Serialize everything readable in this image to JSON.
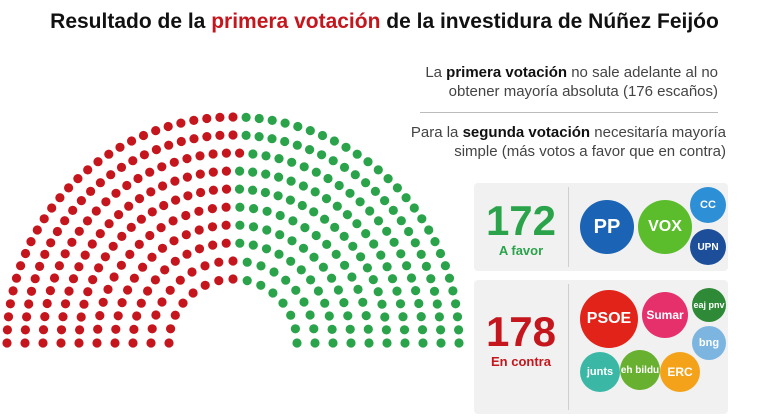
{
  "title": {
    "before": "Resultado de la ",
    "highlight": "primera votación",
    "after": " de la investidura de Núñez Feijóo"
  },
  "notes": {
    "first": {
      "a": "La ",
      "b": "primera votación",
      "c": " no sale adelante al no obtener mayoría absoluta (176 escaños)"
    },
    "second": {
      "a": "Para la ",
      "b": "segunda votación",
      "c": " necesitaría mayoría simple (más votos a favor que en contra)"
    }
  },
  "favor": {
    "count": "172",
    "label": "A favor",
    "parties": [
      "PP",
      "VOX",
      "CC",
      "UPN"
    ]
  },
  "contra": {
    "count": "178",
    "label": "En contra",
    "parties": [
      "PSOE",
      "Sumar",
      "eaj pnv",
      "bng",
      "junts",
      "eh bildu",
      "ERC"
    ]
  },
  "colors": {
    "favor": "#2aa34a",
    "contra": "#c4161c",
    "grey": "#c2c2c2",
    "accent": "#c4161c",
    "pp": "#1b63b5",
    "vox": "#5bbd2b",
    "cc": "#2d8fd5",
    "upn": "#1d4e9a",
    "psoe": "#e2231a",
    "sumar": "#e5306c",
    "pnv": "#2e8a36",
    "bng": "#7cb6e0",
    "junts": "#3ab8a5",
    "bildu": "#68b030",
    "erc": "#f4a21a"
  },
  "chart_data": {
    "type": "parliament",
    "total_seats": 350,
    "majority": 176,
    "groups": [
      {
        "name": "En contra",
        "seats": 178
      },
      {
        "name": "A favor",
        "seats": 172
      }
    ]
  }
}
